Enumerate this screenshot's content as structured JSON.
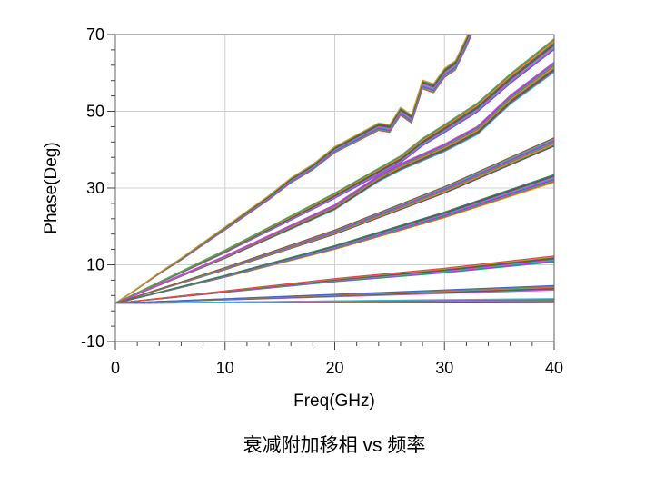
{
  "chart_data": {
    "type": "line",
    "title": "",
    "xlabel": "Freq(GHz)",
    "ylabel": "Phase(Deg)",
    "xlim": [
      0,
      40
    ],
    "ylim": [
      -10,
      70
    ],
    "x_ticks": [
      0,
      10,
      20,
      30,
      40
    ],
    "y_ticks": [
      -10,
      10,
      30,
      50,
      70
    ],
    "x_tick_labels": [
      "0",
      "10",
      "20",
      "30",
      "40"
    ],
    "y_tick_labels": [
      "-10",
      "10",
      "30",
      "50",
      "70"
    ],
    "grid": true,
    "legend": "none",
    "series_colors": [
      "#e8434b",
      "#3cb44b",
      "#4363d8",
      "#f032e6",
      "#2fb8c8",
      "#8b5a2b",
      "#7a2fb0",
      "#2e8b57",
      "#d4a017"
    ],
    "bundles": [
      {
        "x": [
          0,
          2,
          4,
          6,
          8,
          10,
          12,
          14,
          16,
          18,
          20,
          22,
          24,
          25,
          26,
          27,
          28,
          29,
          30,
          31,
          32,
          33
        ],
        "y": [
          0,
          3.8,
          7.8,
          11.5,
          15.5,
          19.5,
          23.5,
          27.5,
          32,
          35.5,
          40,
          43,
          46,
          45.5,
          50,
          48,
          57,
          56,
          60,
          62,
          68,
          75
        ],
        "spread": 1.6
      },
      {
        "x": [
          0,
          10,
          20,
          26,
          28,
          30,
          33,
          36,
          40
        ],
        "y": [
          0,
          13.5,
          28,
          37.5,
          42,
          45.5,
          51,
          58.5,
          67.5
        ],
        "spread": 1.4
      },
      {
        "x": [
          0,
          10,
          20,
          24,
          26,
          30,
          33,
          36,
          40
        ],
        "y": [
          0,
          12,
          25,
          32.5,
          35.5,
          40.5,
          45,
          53,
          61.5
        ],
        "spread": 1.3
      },
      {
        "x": [
          0,
          10,
          20,
          30,
          40
        ],
        "y": [
          0,
          9,
          18.5,
          29.5,
          42
        ],
        "spread": 1.1
      },
      {
        "x": [
          0,
          10,
          20,
          30,
          40
        ],
        "y": [
          0,
          7,
          14.5,
          23,
          32.5
        ],
        "spread": 1.0
      },
      {
        "x": [
          0,
          10,
          20,
          30,
          40
        ],
        "y": [
          0,
          3,
          6,
          8.5,
          11.5
        ],
        "spread": 0.8
      },
      {
        "x": [
          0,
          10,
          20,
          30,
          40
        ],
        "y": [
          0,
          1,
          2,
          3,
          4
        ],
        "spread": 0.6
      },
      {
        "x": [
          0,
          10,
          20,
          30,
          40
        ],
        "y": [
          0,
          0.2,
          0.4,
          0.6,
          0.8
        ],
        "spread": 0.4
      }
    ]
  },
  "caption": "衰减附加移相 vs 频率"
}
